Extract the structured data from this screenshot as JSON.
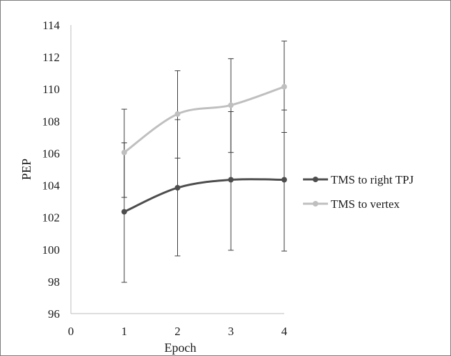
{
  "chart_data": {
    "type": "line",
    "title": "",
    "xlabel": "Epoch",
    "ylabel": "PEP",
    "xlim": [
      0,
      4
    ],
    "ylim": [
      96,
      114
    ],
    "x_ticks": [
      0,
      1,
      2,
      3,
      4
    ],
    "y_ticks": [
      96,
      98,
      100,
      102,
      104,
      106,
      108,
      110,
      112,
      114
    ],
    "x": [
      1,
      2,
      3,
      4
    ],
    "grid": false,
    "legend_position": "right",
    "error_bars": true,
    "smoothed_lines": true,
    "series": [
      {
        "name": "TMS to right TPJ",
        "color": "#4d4d4d",
        "values": [
          102.35,
          103.85,
          104.35,
          104.35
        ],
        "error_low": [
          97.95,
          99.6,
          99.95,
          99.9
        ],
        "error_high": [
          106.65,
          108.1,
          108.6,
          108.7
        ]
      },
      {
        "name": "TMS to vertex",
        "color": "#bfbfbf",
        "values": [
          106.05,
          108.45,
          109.0,
          110.15
        ],
        "error_low": [
          103.25,
          105.7,
          106.05,
          107.3
        ],
        "error_high": [
          108.75,
          111.15,
          111.9,
          113.0
        ]
      }
    ]
  }
}
